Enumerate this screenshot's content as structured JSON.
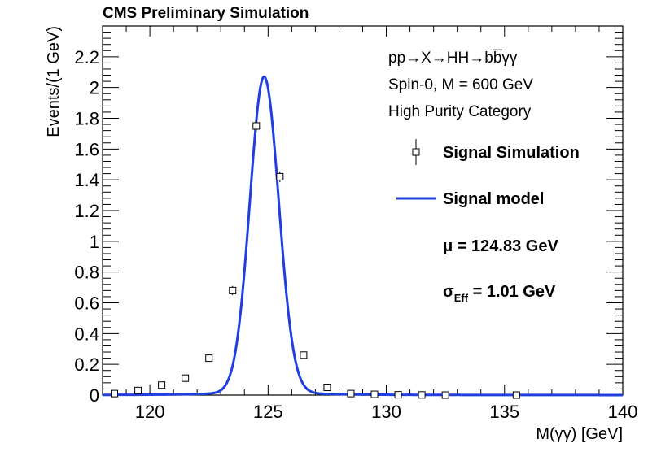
{
  "chart_data": {
    "type": "scatter",
    "title": "CMS Preliminary Simulation",
    "xlabel": "M(γγ) [GeV]",
    "ylabel": "Events/(1 GeV)",
    "xlim": [
      118,
      140
    ],
    "ylim": [
      0,
      2.4
    ],
    "x_ticks": [
      "120",
      "125",
      "130",
      "135",
      "140"
    ],
    "y_ticks": [
      "0",
      "0.2",
      "0.4",
      "0.6",
      "0.8",
      "1",
      "1.2",
      "1.4",
      "1.6",
      "1.8",
      "2",
      "2.2"
    ],
    "info_lines": [
      "pp→X→HH→bb̅γγ",
      "Spin-0, M = 600 GeV",
      "High Purity Category"
    ],
    "series": [
      {
        "name": "Signal Simulation",
        "x": [
          118.5,
          119.5,
          120.5,
          121.5,
          122.5,
          123.5,
          124.5,
          125.5,
          126.5,
          127.5,
          128.5,
          129.5,
          130.5,
          131.5,
          132.5,
          135.5
        ],
        "y": [
          0.01,
          0.03,
          0.065,
          0.11,
          0.24,
          0.68,
          1.75,
          1.42,
          0.26,
          0.05,
          0.01,
          0.005,
          0.002,
          0.001,
          0.0,
          0.0
        ],
        "yerr": [
          0.008,
          0.01,
          0.012,
          0.015,
          0.02,
          0.03,
          0.04,
          0.035,
          0.02,
          0.01,
          0.005,
          0.003,
          0.002,
          0.001,
          0.001,
          0.001
        ]
      },
      {
        "name": "Signal model",
        "peak": 124.83,
        "amplitude": 2.07,
        "sigma_eff": 1.01
      }
    ],
    "mu_label": "μ = 124.83 GeV",
    "sigma_label": "σ",
    "sigma_sub": "Eff",
    "sigma_value": " = 1.01 GeV",
    "colors": {
      "model": "#1f3fe0",
      "markers": "#000000",
      "axes": "#000000"
    }
  }
}
